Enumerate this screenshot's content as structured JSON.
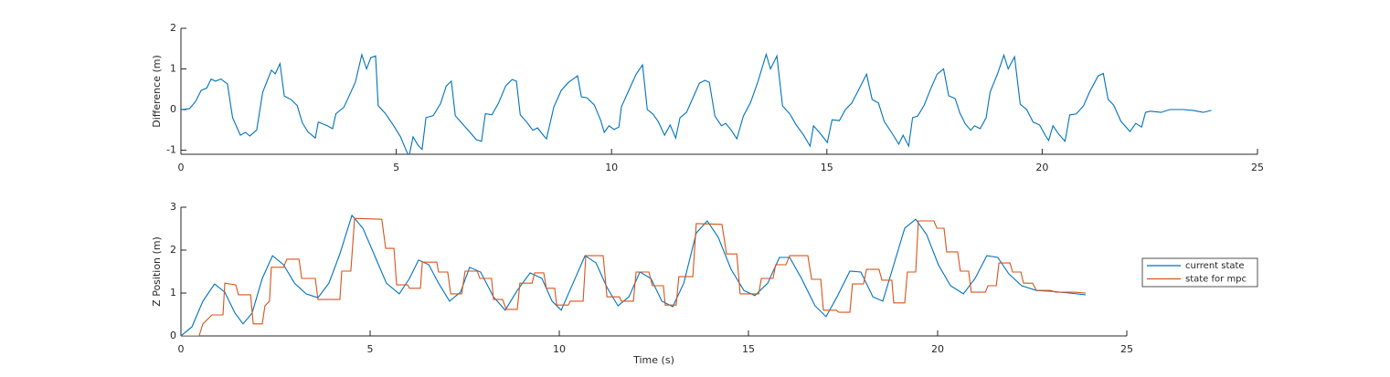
{
  "chart_data": [
    {
      "type": "line",
      "ylabel": "Difference (m)",
      "xlim": [
        0,
        25
      ],
      "xticks": [
        0,
        5,
        10,
        15,
        20,
        25
      ],
      "ylim": [
        -1.1,
        2
      ],
      "yticks": [
        -1,
        0,
        1,
        2
      ],
      "color": "#0072bd",
      "x": [
        0,
        0.2,
        0.34,
        0.47,
        0.6,
        0.7,
        0.8,
        0.93,
        1.08,
        1.2,
        1.38,
        1.5,
        1.6,
        1.76,
        1.9,
        2.1,
        2.19,
        2.3,
        2.4,
        2.55,
        2.7,
        2.82,
        2.95,
        3.12,
        3.19,
        3.4,
        3.52,
        3.6,
        3.78,
        3.89,
        4.05,
        4.2,
        4.31,
        4.41,
        4.52,
        4.58,
        4.75,
        4.93,
        5.1,
        5.24,
        5.3,
        5.39,
        5.5,
        5.6,
        5.69,
        5.86,
        6.03,
        6.16,
        6.28,
        6.37,
        6.56,
        6.73,
        6.86,
        6.98,
        7.07,
        7.22,
        7.37,
        7.54,
        7.69,
        7.79,
        7.88,
        8.03,
        8.17,
        8.28,
        8.43,
        8.49,
        8.66,
        8.83,
        9.0,
        9.21,
        9.3,
        9.43,
        9.6,
        9.75,
        9.83,
        9.94,
        10.06,
        10.17,
        10.23,
        10.4,
        10.57,
        10.72,
        10.83,
        10.96,
        11.08,
        11.23,
        11.36,
        11.49,
        11.59,
        11.74,
        11.89,
        12.04,
        12.17,
        12.27,
        12.4,
        12.55,
        12.65,
        12.78,
        12.91,
        13.06,
        13.23,
        13.4,
        13.59,
        13.69,
        13.84,
        13.97,
        14.14,
        14.29,
        14.46,
        14.61,
        14.69,
        14.84,
        15.01,
        15.12,
        15.29,
        15.43,
        15.58,
        15.73,
        15.92,
        16.05,
        16.2,
        16.33,
        16.5,
        16.67,
        16.77,
        16.9,
        16.99,
        17.11,
        17.26,
        17.41,
        17.56,
        17.71,
        17.83,
        17.98,
        18.09,
        18.22,
        18.34,
        18.43,
        18.56,
        18.7,
        18.79,
        18.96,
        19.11,
        19.21,
        19.36,
        19.49,
        19.64,
        19.79,
        19.94,
        20.08,
        20.15,
        20.25,
        20.38,
        20.53,
        20.64,
        20.79,
        20.96,
        21.1,
        21.3,
        21.42,
        21.53,
        21.66,
        21.83,
        22.04,
        22.17,
        22.31,
        22.4,
        22.51,
        22.76,
        22.97,
        23.27,
        23.5,
        23.74,
        23.93
      ],
      "values": [
        0,
        0.02,
        0.2,
        0.47,
        0.53,
        0.75,
        0.7,
        0.75,
        0.63,
        -0.2,
        -0.63,
        -0.56,
        -0.65,
        -0.5,
        0.43,
        0.97,
        0.88,
        1.13,
        0.33,
        0.25,
        0.1,
        -0.33,
        -0.55,
        -0.7,
        -0.31,
        -0.4,
        -0.47,
        -0.1,
        0.05,
        0.3,
        0.67,
        1.35,
        1.0,
        1.28,
        1.32,
        0.1,
        -0.1,
        -0.38,
        -0.67,
        -1.03,
        -1.14,
        -0.67,
        -0.87,
        -0.98,
        -0.2,
        -0.15,
        0.15,
        0.58,
        0.7,
        -0.15,
        -0.38,
        -0.58,
        -0.74,
        -0.78,
        -0.1,
        -0.13,
        0.15,
        0.58,
        0.74,
        0.7,
        -0.13,
        -0.31,
        -0.51,
        -0.45,
        -0.65,
        -0.72,
        0.07,
        0.47,
        0.67,
        0.83,
        0.31,
        0.29,
        0.11,
        -0.27,
        -0.56,
        -0.4,
        -0.49,
        -0.43,
        0.07,
        0.47,
        0.87,
        1.1,
        0,
        -0.11,
        -0.29,
        -0.63,
        -0.38,
        -0.7,
        -0.2,
        -0.07,
        0.29,
        0.65,
        0.72,
        0.67,
        -0.16,
        -0.4,
        -0.34,
        -0.51,
        -0.72,
        -0.16,
        0.18,
        0.69,
        1.36,
        1.0,
        1.32,
        0.09,
        -0.11,
        -0.38,
        -0.63,
        -0.9,
        -0.4,
        -0.58,
        -0.81,
        -0.25,
        -0.27,
        0,
        0.16,
        0.47,
        0.87,
        0.25,
        0.16,
        -0.29,
        -0.56,
        -0.85,
        -0.63,
        -0.9,
        -0.2,
        -0.16,
        0.11,
        0.51,
        0.87,
        1.0,
        0.34,
        0.27,
        -0.09,
        -0.36,
        -0.51,
        -0.4,
        -0.47,
        -0.2,
        0.43,
        0.87,
        1.34,
        1.0,
        1.3,
        0.13,
        0,
        -0.31,
        -0.38,
        -0.65,
        -0.76,
        -0.4,
        -0.6,
        -0.78,
        -0.13,
        -0.11,
        0.09,
        0.43,
        0.83,
        0.89,
        0.25,
        0.11,
        -0.29,
        -0.54,
        -0.34,
        -0.43,
        -0.07,
        -0.04,
        -0.07,
        0,
        0,
        -0.02,
        -0.07,
        -0.02
      ]
    },
    {
      "type": "line",
      "ylabel": "Z Position (m)",
      "xlabel": "Time (s)",
      "xlim": [
        0,
        25
      ],
      "xticks": [
        0,
        5,
        10,
        15,
        20,
        25
      ],
      "ylim": [
        0,
        3
      ],
      "yticks": [
        0,
        1,
        2,
        3
      ],
      "legend": "right",
      "series": [
        {
          "name": "current state",
          "color": "#0072bd",
          "x": [
            0,
            0.29,
            0.58,
            0.89,
            1.16,
            1.43,
            1.64,
            1.88,
            2.15,
            2.42,
            2.71,
            3.0,
            3.31,
            3.62,
            3.91,
            4.2,
            4.52,
            4.81,
            5.12,
            5.43,
            5.77,
            6.04,
            6.28,
            6.55,
            6.81,
            7.1,
            7.39,
            7.63,
            7.92,
            8.26,
            8.57,
            8.89,
            9.23,
            9.54,
            9.81,
            10.05,
            10.39,
            10.68,
            10.97,
            11.26,
            11.55,
            11.84,
            12.13,
            12.42,
            12.71,
            13.0,
            13.29,
            13.62,
            13.91,
            14.2,
            14.54,
            14.88,
            15.17,
            15.51,
            15.82,
            16.09,
            16.4,
            16.76,
            17.05,
            17.34,
            17.68,
            17.97,
            18.29,
            18.55,
            18.84,
            19.13,
            19.42,
            19.71,
            20.02,
            20.34,
            20.68,
            20.99,
            21.3,
            21.59,
            21.88,
            22.22,
            22.61,
            22.99,
            23.48,
            23.91
          ],
          "values": [
            0,
            0.21,
            0.81,
            1.21,
            1.02,
            0.53,
            0.28,
            0.53,
            1.34,
            1.87,
            1.66,
            1.23,
            0.98,
            0.89,
            1.23,
            1.91,
            2.81,
            2.51,
            1.87,
            1.23,
            0.98,
            1.34,
            1.77,
            1.66,
            1.23,
            0.81,
            1.02,
            1.6,
            1.49,
            0.91,
            0.6,
            1.06,
            1.47,
            1.34,
            0.81,
            0.6,
            1.28,
            1.87,
            1.7,
            1.13,
            0.7,
            0.91,
            1.49,
            1.34,
            0.81,
            0.68,
            1.23,
            2.4,
            2.68,
            2.3,
            1.55,
            1.06,
            0.94,
            1.23,
            1.83,
            1.83,
            1.34,
            0.7,
            0.45,
            0.91,
            1.51,
            1.49,
            0.91,
            0.81,
            1.66,
            2.51,
            2.72,
            2.36,
            1.66,
            1.17,
            0.98,
            1.34,
            1.87,
            1.83,
            1.45,
            1.17,
            1.06,
            1.04,
            1.0,
            0.96
          ]
        },
        {
          "name": "state for mpc",
          "color": "#d95319",
          "x": [
            0,
            0.48,
            0.58,
            0.82,
            1.11,
            1.16,
            1.45,
            1.52,
            1.84,
            1.91,
            2.15,
            2.22,
            2.34,
            2.39,
            2.71,
            2.8,
            3.12,
            3.19,
            3.55,
            3.62,
            4.2,
            4.25,
            4.49,
            4.59,
            5.31,
            5.41,
            5.63,
            5.7,
            5.99,
            6.04,
            6.33,
            6.38,
            6.76,
            6.81,
            7.05,
            7.13,
            7.42,
            7.51,
            7.83,
            7.9,
            8.21,
            8.26,
            8.5,
            8.6,
            8.89,
            8.96,
            9.28,
            9.35,
            9.59,
            9.66,
            9.88,
            9.93,
            10.24,
            10.29,
            10.63,
            10.7,
            11.16,
            11.26,
            11.59,
            11.64,
            11.96,
            12.03,
            12.37,
            12.46,
            12.75,
            12.8,
            13.09,
            13.16,
            13.53,
            13.62,
            14.3,
            14.42,
            14.69,
            14.78,
            15.27,
            15.34,
            15.65,
            15.72,
            15.99,
            16.09,
            16.57,
            16.67,
            16.91,
            16.98,
            17.32,
            17.39,
            17.68,
            17.75,
            18.04,
            18.12,
            18.45,
            18.53,
            18.79,
            18.84,
            19.13,
            19.2,
            19.42,
            19.49,
            19.9,
            19.98,
            20.17,
            20.24,
            20.53,
            20.6,
            20.82,
            20.89,
            21.26,
            21.33,
            21.55,
            21.62,
            21.91,
            21.98,
            22.2,
            22.27,
            22.51,
            22.61,
            22.99,
            23.12,
            23.6,
            23.91
          ],
          "values": [
            0,
            0,
            0.28,
            0.49,
            0.49,
            1.23,
            1.19,
            0.96,
            0.96,
            0.28,
            0.28,
            0.7,
            0.81,
            1.6,
            1.6,
            1.79,
            1.79,
            1.34,
            1.34,
            0.85,
            0.85,
            1.51,
            1.51,
            2.74,
            2.72,
            2.04,
            2.04,
            1.19,
            1.19,
            1.11,
            1.11,
            1.72,
            1.72,
            1.49,
            1.49,
            0.98,
            0.98,
            1.51,
            1.51,
            1.34,
            1.34,
            0.85,
            0.85,
            0.62,
            0.62,
            1.23,
            1.23,
            1.47,
            1.47,
            1.11,
            1.11,
            0.72,
            0.72,
            0.81,
            0.81,
            1.87,
            1.87,
            0.91,
            0.91,
            0.81,
            0.81,
            1.49,
            1.49,
            1.17,
            1.17,
            0.72,
            0.72,
            1.38,
            1.38,
            2.62,
            2.6,
            1.91,
            1.91,
            0.98,
            0.98,
            1.34,
            1.34,
            1.66,
            1.66,
            1.87,
            1.87,
            1.32,
            1.32,
            0.6,
            0.6,
            0.55,
            0.55,
            1.21,
            1.21,
            1.55,
            1.55,
            1.3,
            1.3,
            0.77,
            0.77,
            1.49,
            1.49,
            2.68,
            2.68,
            2.51,
            2.51,
            1.96,
            1.96,
            1.51,
            1.51,
            1.02,
            1.02,
            1.17,
            1.17,
            1.7,
            1.7,
            1.49,
            1.49,
            1.23,
            1.23,
            1.06,
            1.06,
            1.02,
            1.02,
            1.0
          ]
        }
      ]
    }
  ]
}
